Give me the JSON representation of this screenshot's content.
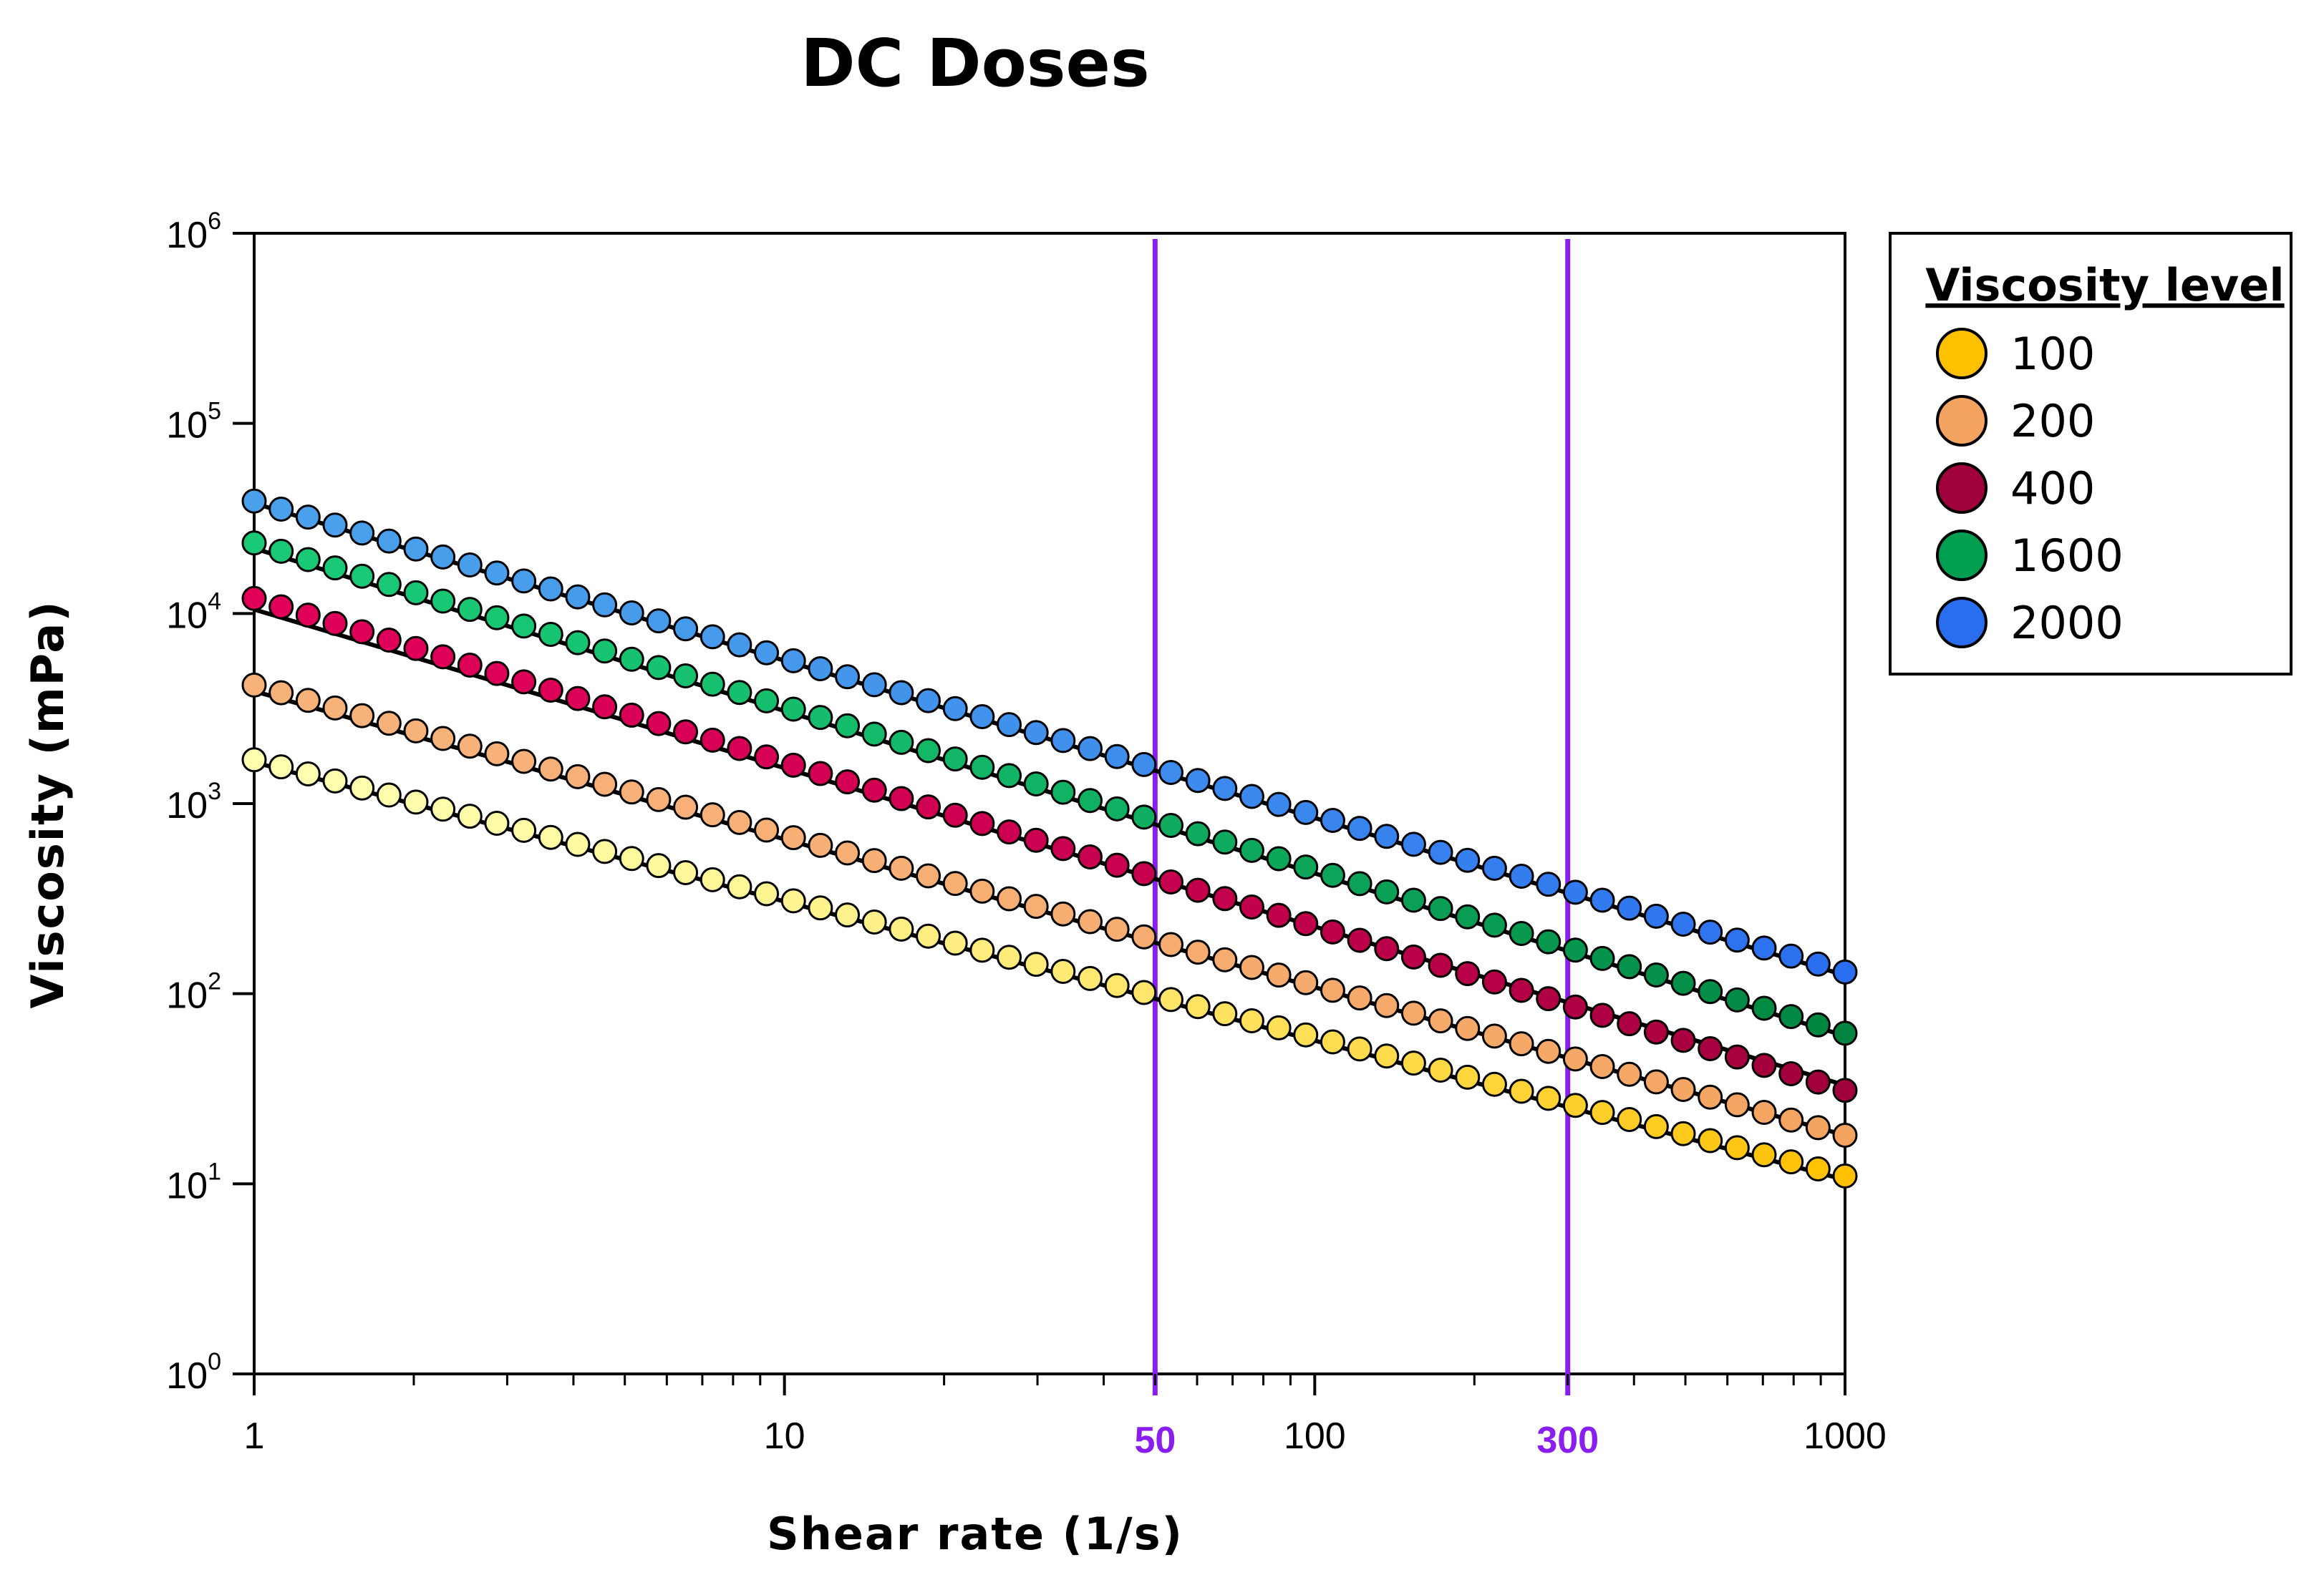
{
  "chart_data": {
    "type": "scatter",
    "title": "DC Doses",
    "xlabel": "Shear rate (1/s)",
    "ylabel": "Viscosity (mPa)",
    "xscale": "log",
    "yscale": "log",
    "xlim": [
      1,
      1000
    ],
    "ylim": [
      1,
      1000000
    ],
    "x_ticks": [
      {
        "value": 1,
        "label": "1"
      },
      {
        "value": 10,
        "label": "10"
      },
      {
        "value": 100,
        "label": "100"
      },
      {
        "value": 1000,
        "label": "1000"
      }
    ],
    "y_ticks": [
      {
        "value": 1,
        "base": "10",
        "exp": "0"
      },
      {
        "value": 10,
        "base": "10",
        "exp": "1"
      },
      {
        "value": 100,
        "base": "10",
        "exp": "2"
      },
      {
        "value": 1000,
        "base": "10",
        "exp": "3"
      },
      {
        "value": 10000,
        "base": "10",
        "exp": "4"
      },
      {
        "value": 100000,
        "base": "10",
        "exp": "5"
      },
      {
        "value": 1000000,
        "base": "10",
        "exp": "6"
      }
    ],
    "reference_lines": [
      {
        "x": 50,
        "label": "50",
        "color": "#8a1ef0"
      },
      {
        "x": 300,
        "label": "300",
        "color": "#8a1ef0"
      }
    ],
    "legend": {
      "title": "Viscosity level",
      "position": "outside-right-top"
    },
    "points_per_series": 60,
    "series": [
      {
        "name": "100",
        "color": "#ffc000",
        "color_start": "#ffffb0",
        "color_end": "#ffc000",
        "y_at_1": 1700,
        "y_at_1000": 11,
        "fit_y_at_1": 1650,
        "fit_y_at_1000": 10.5
      },
      {
        "name": "200",
        "color": "#f4a460",
        "color_start": "#f7b27a",
        "color_end": "#f4a460",
        "y_at_1": 4200,
        "y_at_1000": 18,
        "fit_y_at_1": 3900,
        "fit_y_at_1000": 18
      },
      {
        "name": "400",
        "color": "#a0003c",
        "color_start": "#e0005a",
        "color_end": "#a0003c",
        "y_at_1": 12000,
        "y_at_1000": 31,
        "fit_y_at_1": 10500,
        "fit_y_at_1000": 33
      },
      {
        "name": "1600",
        "color": "#00a050",
        "color_start": "#19c975",
        "color_end": "#00843f",
        "y_at_1": 23500,
        "y_at_1000": 62,
        "fit_y_at_1": 22000,
        "fit_y_at_1000": 60
      },
      {
        "name": "2000",
        "color": "#2a6ef0",
        "color_start": "#4aa0ea",
        "color_end": "#2a6ef0",
        "y_at_1": 39000,
        "y_at_1000": 130,
        "fit_y_at_1": 38000,
        "fit_y_at_1000": 125
      }
    ]
  }
}
